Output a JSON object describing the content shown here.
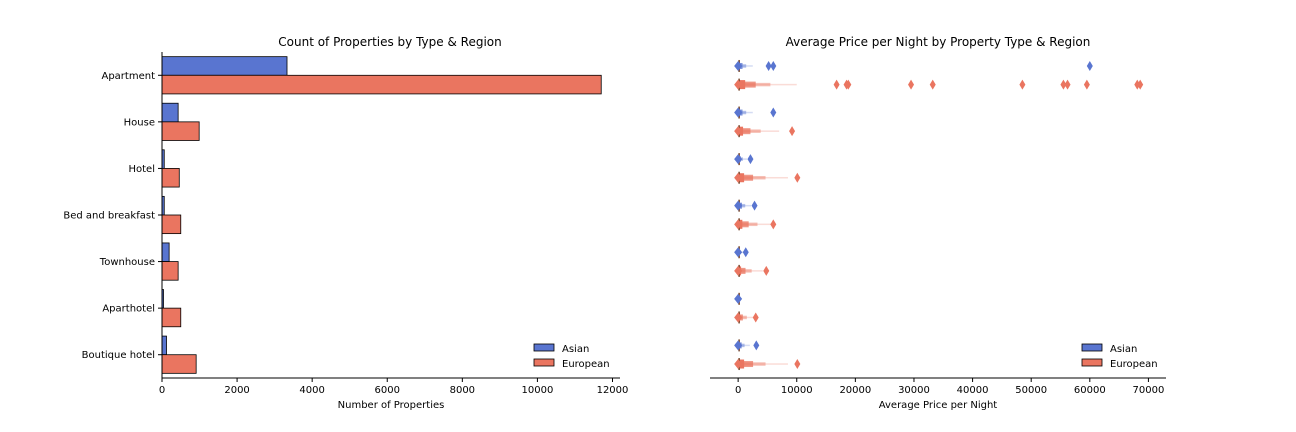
{
  "chart_data": [
    {
      "type": "bar",
      "orientation": "horizontal",
      "title": "Count of Properties by Type & Region",
      "xlabel": "Number of Properties",
      "ylabel": "",
      "xlim": [
        0,
        12200
      ],
      "xticks": [
        0,
        2000,
        4000,
        6000,
        8000,
        10000,
        12000
      ],
      "categories": [
        "Apartment",
        "House",
        "Hotel",
        "Bed and breakfast",
        "Townhouse",
        "Aparthotel",
        "Boutique hotel"
      ],
      "series": [
        {
          "name": "Asian",
          "color": "#5975d0",
          "values": [
            3330,
            430,
            60,
            60,
            190,
            40,
            120
          ]
        },
        {
          "name": "European",
          "color": "#ea7560",
          "values": [
            11700,
            990,
            460,
            500,
            430,
            500,
            910
          ]
        }
      ],
      "legend": "lower-right",
      "grid": false
    },
    {
      "type": "scatter",
      "subtype": "letter-value plot",
      "title": "Average Price per Night by Property Type & Region",
      "xlabel": "Average Price per Night",
      "ylabel": "",
      "xlim": [
        -4800,
        73000
      ],
      "xticks": [
        0,
        10000,
        20000,
        30000,
        40000,
        50000,
        60000,
        70000
      ],
      "categories": [
        "Apartment",
        "House",
        "Hotel",
        "Bed and breakfast",
        "Townhouse",
        "Aparthotel",
        "Boutique hotel"
      ],
      "series": [
        {
          "name": "Asian",
          "color": "#5975d0",
          "box_max": [
            2500,
            2500,
            1500,
            2200,
            900,
            400,
            2000
          ],
          "outliers": [
            [
              5200,
              6000,
              60000
            ],
            [
              6000
            ],
            [
              2100
            ],
            [
              2800
            ],
            [
              1300
            ],
            [],
            [
              3100
            ]
          ]
        },
        {
          "name": "European",
          "color": "#ea7560",
          "box_max": [
            10000,
            7000,
            8500,
            6000,
            4200,
            2700,
            8500
          ],
          "outliers": [
            [
              16800,
              18500,
              18800,
              29500,
              33200,
              48500,
              55500,
              56200,
              59500,
              68100,
              68600
            ],
            [
              9200
            ],
            [
              10100
            ],
            [
              6000
            ],
            [
              4800
            ],
            [
              3000
            ],
            [
              10100
            ]
          ]
        }
      ],
      "legend": "lower-right",
      "grid": false
    }
  ]
}
